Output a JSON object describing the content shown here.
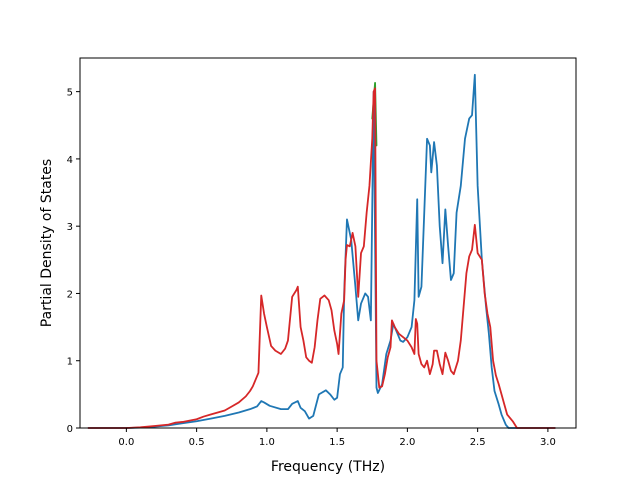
{
  "chart_data": {
    "type": "line",
    "title": "",
    "xlabel": "Frequency (THz)",
    "ylabel": "Partial Density of States",
    "xlim": [
      -0.33,
      3.2
    ],
    "ylim": [
      0,
      5.5
    ],
    "xticks": [
      0.0,
      0.5,
      1.0,
      1.5,
      2.0,
      2.5,
      3.0
    ],
    "xtick_labels": [
      "0.0",
      "0.5",
      "1.0",
      "1.5",
      "2.0",
      "2.5",
      "3.0"
    ],
    "yticks": [
      0,
      1,
      2,
      3,
      4,
      5
    ],
    "ytick_labels": [
      "0",
      "1",
      "2",
      "3",
      "4",
      "5"
    ],
    "grid": false,
    "legend": "none",
    "series": [
      {
        "color": "#1f77b4",
        "points": [
          [
            -0.27,
            0
          ],
          [
            0.0,
            0
          ],
          [
            0.1,
            0.005
          ],
          [
            0.2,
            0.02
          ],
          [
            0.3,
            0.04
          ],
          [
            0.4,
            0.07
          ],
          [
            0.5,
            0.1
          ],
          [
            0.6,
            0.14
          ],
          [
            0.7,
            0.18
          ],
          [
            0.8,
            0.23
          ],
          [
            0.88,
            0.28
          ],
          [
            0.93,
            0.32
          ],
          [
            0.96,
            0.4
          ],
          [
            0.98,
            0.38
          ],
          [
            1.02,
            0.33
          ],
          [
            1.1,
            0.28
          ],
          [
            1.15,
            0.28
          ],
          [
            1.18,
            0.36
          ],
          [
            1.22,
            0.4
          ],
          [
            1.24,
            0.3
          ],
          [
            1.27,
            0.25
          ],
          [
            1.3,
            0.14
          ],
          [
            1.33,
            0.18
          ],
          [
            1.37,
            0.5
          ],
          [
            1.42,
            0.56
          ],
          [
            1.45,
            0.5
          ],
          [
            1.48,
            0.42
          ],
          [
            1.5,
            0.45
          ],
          [
            1.52,
            0.8
          ],
          [
            1.54,
            0.9
          ],
          [
            1.55,
            2.0
          ],
          [
            1.57,
            3.1
          ],
          [
            1.6,
            2.8
          ],
          [
            1.63,
            2.1
          ],
          [
            1.65,
            1.6
          ],
          [
            1.67,
            1.85
          ],
          [
            1.7,
            2.0
          ],
          [
            1.72,
            1.95
          ],
          [
            1.74,
            1.6
          ],
          [
            1.76,
            5.0
          ],
          [
            1.78,
            0.6
          ],
          [
            1.79,
            0.52
          ],
          [
            1.82,
            0.65
          ],
          [
            1.85,
            1.1
          ],
          [
            1.88,
            1.3
          ],
          [
            1.9,
            1.55
          ],
          [
            1.93,
            1.4
          ],
          [
            1.95,
            1.3
          ],
          [
            1.97,
            1.28
          ],
          [
            2.0,
            1.35
          ],
          [
            2.03,
            1.5
          ],
          [
            2.05,
            1.9
          ],
          [
            2.07,
            3.4
          ],
          [
            2.08,
            1.95
          ],
          [
            2.1,
            2.1
          ],
          [
            2.12,
            3.2
          ],
          [
            2.14,
            4.3
          ],
          [
            2.16,
            4.2
          ],
          [
            2.17,
            3.8
          ],
          [
            2.19,
            4.25
          ],
          [
            2.21,
            3.9
          ],
          [
            2.23,
            3.0
          ],
          [
            2.25,
            2.45
          ],
          [
            2.27,
            3.25
          ],
          [
            2.29,
            2.7
          ],
          [
            2.31,
            2.2
          ],
          [
            2.33,
            2.3
          ],
          [
            2.35,
            3.2
          ],
          [
            2.38,
            3.6
          ],
          [
            2.41,
            4.3
          ],
          [
            2.44,
            4.6
          ],
          [
            2.46,
            4.65
          ],
          [
            2.48,
            5.25
          ],
          [
            2.5,
            3.6
          ],
          [
            2.53,
            2.5
          ],
          [
            2.56,
            1.8
          ],
          [
            2.58,
            1.4
          ],
          [
            2.6,
            0.9
          ],
          [
            2.62,
            0.55
          ],
          [
            2.65,
            0.35
          ],
          [
            2.67,
            0.2
          ],
          [
            2.7,
            0.05
          ],
          [
            2.72,
            0
          ],
          [
            3.05,
            0
          ]
        ]
      },
      {
        "color": "#2ca02c",
        "points": [
          [
            1.75,
            4.6
          ],
          [
            1.77,
            5.13
          ],
          [
            1.78,
            4.2
          ]
        ]
      },
      {
        "color": "#d62728",
        "points": [
          [
            -0.27,
            0
          ],
          [
            0.0,
            0
          ],
          [
            0.1,
            0.01
          ],
          [
            0.2,
            0.03
          ],
          [
            0.3,
            0.05
          ],
          [
            0.35,
            0.08
          ],
          [
            0.4,
            0.09
          ],
          [
            0.5,
            0.13
          ],
          [
            0.55,
            0.17
          ],
          [
            0.6,
            0.2
          ],
          [
            0.7,
            0.26
          ],
          [
            0.75,
            0.32
          ],
          [
            0.8,
            0.38
          ],
          [
            0.85,
            0.47
          ],
          [
            0.88,
            0.55
          ],
          [
            0.9,
            0.62
          ],
          [
            0.92,
            0.72
          ],
          [
            0.94,
            0.82
          ],
          [
            0.96,
            1.97
          ],
          [
            0.98,
            1.7
          ],
          [
            1.0,
            1.5
          ],
          [
            1.03,
            1.22
          ],
          [
            1.06,
            1.15
          ],
          [
            1.1,
            1.1
          ],
          [
            1.13,
            1.18
          ],
          [
            1.15,
            1.3
          ],
          [
            1.18,
            1.95
          ],
          [
            1.21,
            2.05
          ],
          [
            1.22,
            2.1
          ],
          [
            1.24,
            1.5
          ],
          [
            1.26,
            1.3
          ],
          [
            1.28,
            1.05
          ],
          [
            1.3,
            1.0
          ],
          [
            1.32,
            0.97
          ],
          [
            1.34,
            1.2
          ],
          [
            1.36,
            1.6
          ],
          [
            1.38,
            1.92
          ],
          [
            1.41,
            1.97
          ],
          [
            1.44,
            1.9
          ],
          [
            1.46,
            1.75
          ],
          [
            1.48,
            1.45
          ],
          [
            1.5,
            1.25
          ],
          [
            1.51,
            1.1
          ],
          [
            1.53,
            1.7
          ],
          [
            1.55,
            1.9
          ],
          [
            1.56,
            2.5
          ],
          [
            1.57,
            2.72
          ],
          [
            1.59,
            2.7
          ],
          [
            1.61,
            2.9
          ],
          [
            1.63,
            2.7
          ],
          [
            1.65,
            1.95
          ],
          [
            1.67,
            2.6
          ],
          [
            1.69,
            2.7
          ],
          [
            1.71,
            3.2
          ],
          [
            1.73,
            3.6
          ],
          [
            1.75,
            4.3
          ],
          [
            1.76,
            5.0
          ],
          [
            1.77,
            5.05
          ],
          [
            1.78,
            1.0
          ],
          [
            1.8,
            0.6
          ],
          [
            1.82,
            0.62
          ],
          [
            1.84,
            0.8
          ],
          [
            1.86,
            1.05
          ],
          [
            1.88,
            1.2
          ],
          [
            1.89,
            1.6
          ],
          [
            1.91,
            1.5
          ],
          [
            1.94,
            1.4
          ],
          [
            1.97,
            1.35
          ],
          [
            2.0,
            1.3
          ],
          [
            2.03,
            1.2
          ],
          [
            2.05,
            1.1
          ],
          [
            2.06,
            1.62
          ],
          [
            2.07,
            1.55
          ],
          [
            2.08,
            1.1
          ],
          [
            2.1,
            0.95
          ],
          [
            2.12,
            0.9
          ],
          [
            2.14,
            1.0
          ],
          [
            2.16,
            0.8
          ],
          [
            2.18,
            0.95
          ],
          [
            2.19,
            1.15
          ],
          [
            2.21,
            1.15
          ],
          [
            2.23,
            0.95
          ],
          [
            2.25,
            0.8
          ],
          [
            2.27,
            1.12
          ],
          [
            2.29,
            1.0
          ],
          [
            2.31,
            0.85
          ],
          [
            2.33,
            0.8
          ],
          [
            2.36,
            1.0
          ],
          [
            2.38,
            1.3
          ],
          [
            2.4,
            1.8
          ],
          [
            2.42,
            2.3
          ],
          [
            2.44,
            2.55
          ],
          [
            2.46,
            2.65
          ],
          [
            2.48,
            3.02
          ],
          [
            2.5,
            2.6
          ],
          [
            2.53,
            2.5
          ],
          [
            2.55,
            2.0
          ],
          [
            2.57,
            1.7
          ],
          [
            2.59,
            1.5
          ],
          [
            2.61,
            1.0
          ],
          [
            2.63,
            0.78
          ],
          [
            2.65,
            0.65
          ],
          [
            2.67,
            0.5
          ],
          [
            2.69,
            0.35
          ],
          [
            2.71,
            0.2
          ],
          [
            2.73,
            0.15
          ],
          [
            2.75,
            0.1
          ],
          [
            2.78,
            0
          ],
          [
            3.05,
            0
          ]
        ]
      }
    ]
  }
}
